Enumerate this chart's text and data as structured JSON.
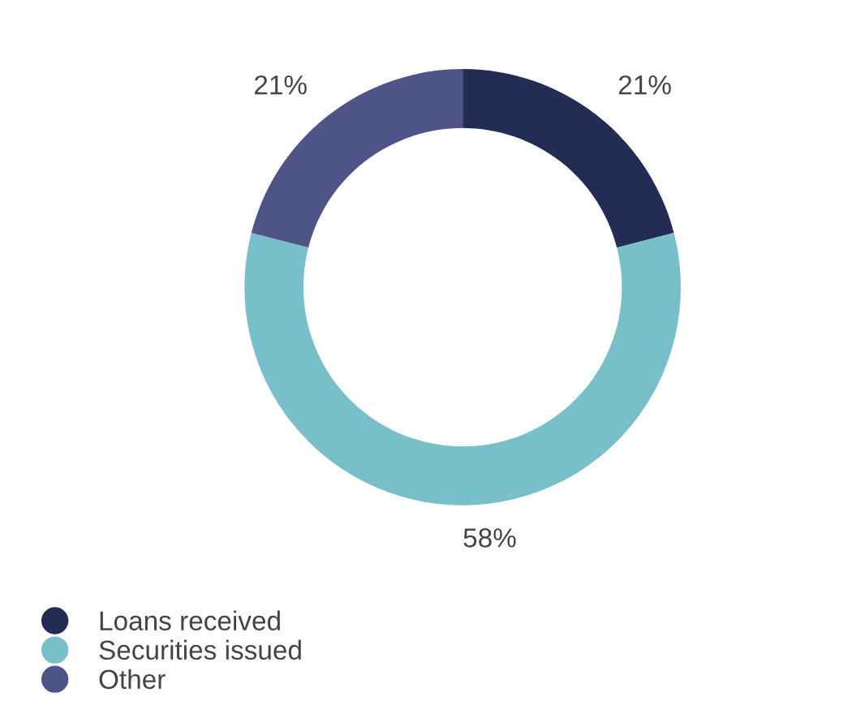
{
  "chart_data": {
    "type": "donut",
    "categories": [
      "Loans received",
      "Securities issued",
      "Other"
    ],
    "values": [
      21,
      58,
      21
    ],
    "colors": [
      "#222c55",
      "#77bfc9",
      "#4e5487"
    ],
    "value_labels": [
      "21%",
      "58%",
      "21%"
    ],
    "legend": "bottom left"
  }
}
